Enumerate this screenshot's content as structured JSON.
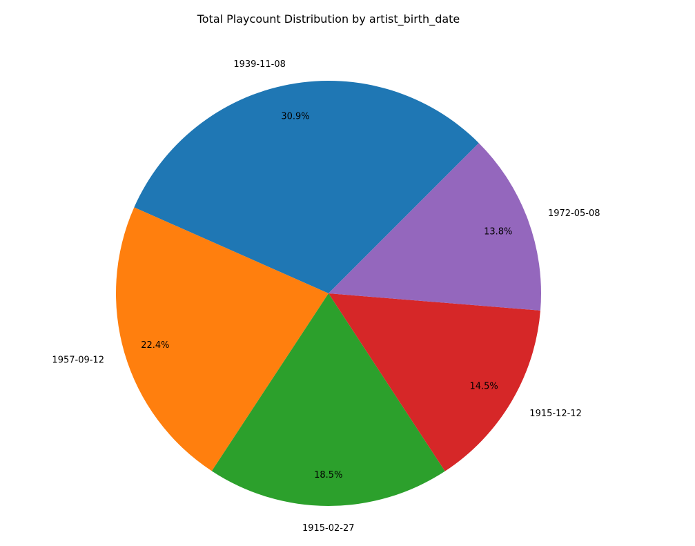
{
  "chart_data": {
    "type": "pie",
    "title": "Total Playcount Distribution by artist_birth_date",
    "categories": [
      "1939-11-08",
      "1957-09-12",
      "1915-02-27",
      "1915-12-12",
      "1972-05-08"
    ],
    "values": [
      30.9,
      22.4,
      18.5,
      14.5,
      13.8
    ],
    "percent_labels": [
      "30.9%",
      "22.4%",
      "18.5%",
      "14.5%",
      "13.8%"
    ],
    "colors": [
      "#1f77b4",
      "#ff7f0e",
      "#2ca02c",
      "#d62728",
      "#9467bd"
    ],
    "start_angle_deg": 45,
    "direction": "counterclockwise"
  }
}
